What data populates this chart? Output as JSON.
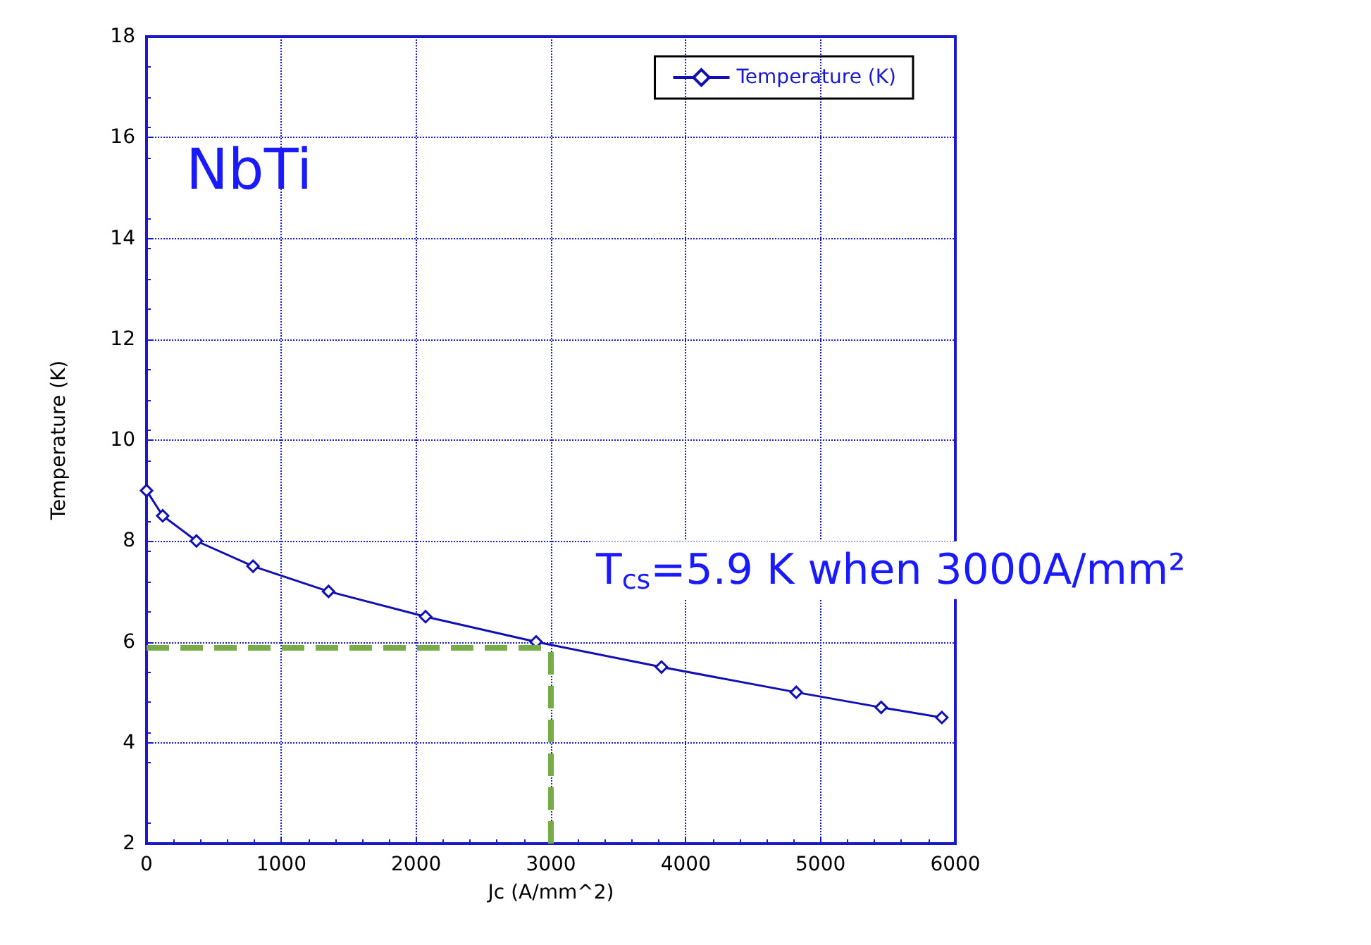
{
  "chart_data": {
    "type": "line",
    "xlabel": "Jc (A/mm^2)",
    "ylabel": "Temperature (K)",
    "x": [
      0,
      120,
      370,
      790,
      1350,
      2070,
      2890,
      3820,
      4820,
      5450,
      5900
    ],
    "series": [
      {
        "name": "Temperature (K)",
        "color": "#0f0fb4",
        "values": [
          9.0,
          8.5,
          8.0,
          7.5,
          7.0,
          6.5,
          6.0,
          5.5,
          5.0,
          4.7,
          4.5
        ]
      }
    ],
    "xlim": [
      0,
      6000
    ],
    "xticks": [
      0,
      1000,
      2000,
      3000,
      4000,
      5000,
      6000
    ],
    "ylim": [
      2,
      18
    ],
    "yticks": [
      2,
      4,
      6,
      8,
      10,
      12,
      14,
      16,
      18
    ],
    "grid": true,
    "legend": "top right",
    "marker": "diamond",
    "line_style": "solid",
    "ref_lines": [
      {
        "axis": "y",
        "value": 5.9,
        "color": "#77ac48",
        "line_style": "dashed"
      },
      {
        "axis": "x",
        "value": 3000,
        "color": "#77ac48",
        "line_style": "dashed"
      }
    ],
    "annotations": [
      "NbTi",
      {
        "text": "T$_{cs}$=5.9 K when 3000A/mm²",
        "x": 3000,
        "y": 5.9
      }
    ]
  }
}
